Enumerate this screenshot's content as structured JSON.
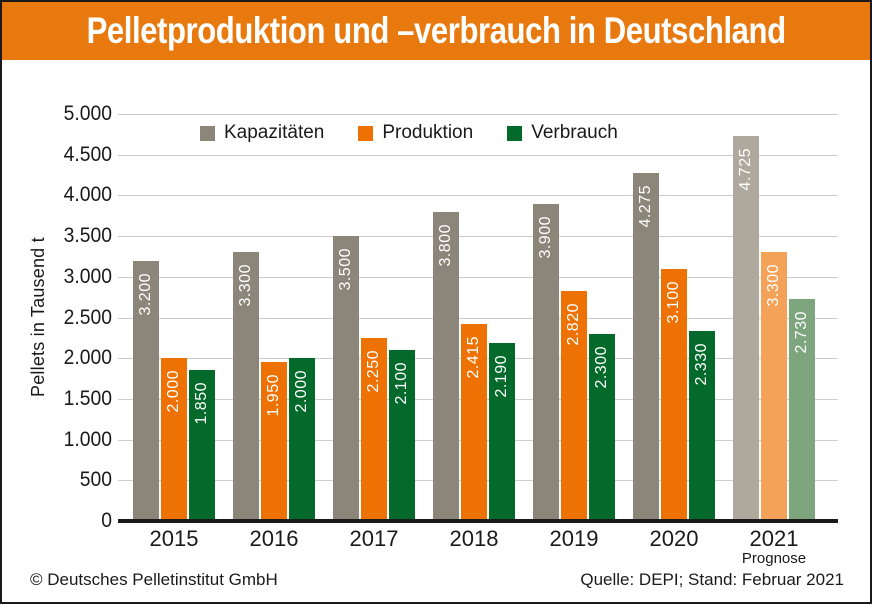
{
  "header": {
    "title": "Pelletproduktion und –verbrauch in Deutschland",
    "bg_color": "#E8790F"
  },
  "chart_data": {
    "type": "bar",
    "title": "Pelletproduktion und –verbrauch in Deutschland",
    "ylabel": "Pellets in Tausend t",
    "xlabel": "",
    "ylim": [
      0,
      5000
    ],
    "ytick_step": 500,
    "ytick_labels": [
      "0",
      "500",
      "1.000",
      "1.500",
      "2.000",
      "2.500",
      "3.000",
      "3.500",
      "4.000",
      "4.500",
      "5.000"
    ],
    "grid": true,
    "legend_position": "top",
    "categories": [
      "2015",
      "2016",
      "2017",
      "2018",
      "2019",
      "2020",
      "2021"
    ],
    "forecast": {
      "category": "2021",
      "note": "Prognose"
    },
    "series": [
      {
        "name": "Kapazitäten",
        "color": "#8C857A",
        "forecast_color": "#AFA89D",
        "values": [
          3200,
          3300,
          3500,
          3800,
          3900,
          4275,
          4725
        ]
      },
      {
        "name": "Produktion",
        "color": "#EE7203",
        "forecast_color": "#F4A257",
        "values": [
          2000,
          1950,
          2250,
          2415,
          2820,
          3100,
          3300
        ]
      },
      {
        "name": "Verbrauch",
        "color": "#046A2B",
        "forecast_color": "#7EA67E",
        "values": [
          1850,
          2000,
          2100,
          2190,
          2300,
          2330,
          2730
        ]
      }
    ],
    "bar_value_labels": [
      [
        "3.200",
        "3.300",
        "3.500",
        "3.800",
        "3.900",
        "4.275",
        "4.725"
      ],
      [
        "2.000",
        "1.950",
        "2.250",
        "2.415",
        "2.820",
        "3.100",
        "3.300"
      ],
      [
        "1.850",
        "2.000",
        "2.100",
        "2.190",
        "2.300",
        "2.330",
        "2.730"
      ]
    ],
    "colors": {
      "gridline": "#CCCCCC",
      "axis": "#1A1A1A",
      "bar_label_text": "#FFFFFF"
    }
  },
  "footer": {
    "left": "© Deutsches Pelletinstitut GmbH",
    "right": "Quelle: DEPI; Stand: Februar 2021"
  }
}
